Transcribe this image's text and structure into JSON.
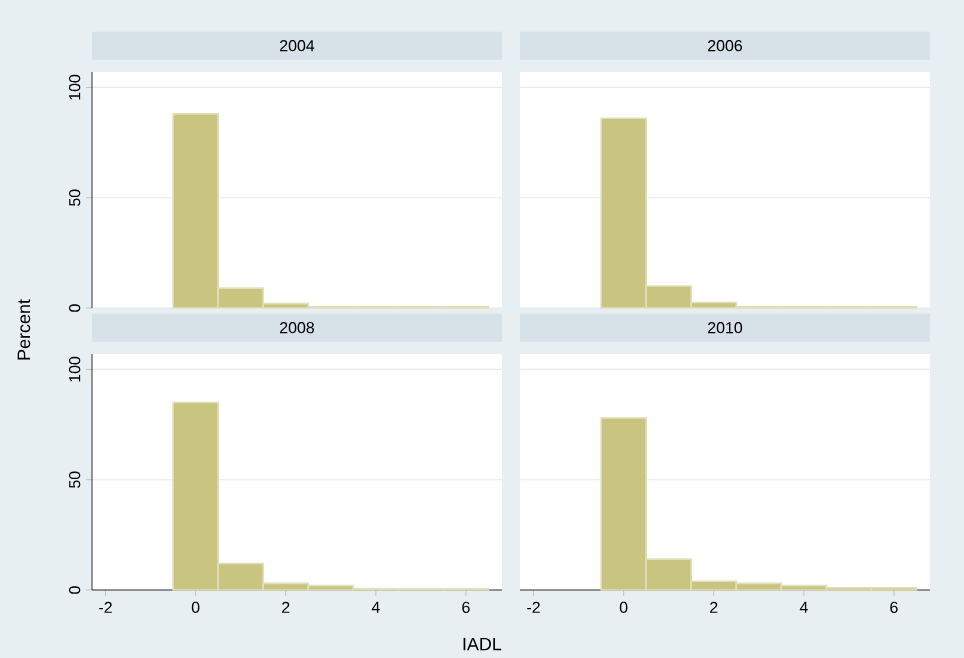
{
  "chart_data": [
    {
      "type": "histogram",
      "title": "2004",
      "ylabel": "Percent",
      "bins": [
        -0.5,
        0.5,
        1.5,
        2.5,
        3.5,
        4.5,
        5.5,
        6.5
      ],
      "values": [
        88,
        9,
        2,
        0.5,
        0.5,
        0.5,
        0.5
      ],
      "color": "#c9c47f",
      "xlim": [
        -2.3,
        6.8
      ],
      "ylim": [
        0,
        107
      ],
      "xticks": [
        -2,
        0,
        2,
        4,
        6
      ],
      "yticks": [
        0,
        50,
        100
      ],
      "grid": "y",
      "tick_labels": "y"
    },
    {
      "type": "histogram",
      "title": "2006",
      "bins": [
        -0.5,
        0.5,
        1.5,
        2.5,
        3.5,
        4.5,
        5.5,
        6.5
      ],
      "values": [
        86,
        10,
        2.5,
        0.5,
        0.5,
        0.5,
        0.5
      ],
      "color": "#c9c47f",
      "xlim": [
        -2.3,
        6.8
      ],
      "ylim": [
        0,
        107
      ],
      "xticks": [
        -2,
        0,
        2,
        4,
        6
      ],
      "yticks": [
        0,
        50,
        100
      ],
      "grid": "y",
      "tick_labels": false
    },
    {
      "type": "histogram",
      "title": "2008",
      "bins": [
        -0.5,
        0.5,
        1.5,
        2.5,
        3.5,
        4.5,
        5.5,
        6.5
      ],
      "values": [
        85,
        12,
        3,
        2,
        0.5,
        0.5,
        0.5
      ],
      "color": "#c9c47f",
      "xlim": [
        -2.3,
        6.8
      ],
      "ylim": [
        0,
        107
      ],
      "xticks": [
        -2,
        0,
        2,
        4,
        6
      ],
      "yticks": [
        0,
        50,
        100
      ],
      "grid": "y"
    },
    {
      "type": "histogram",
      "title": "2010",
      "xlabel": "IADL",
      "bins": [
        -0.5,
        0.5,
        1.5,
        2.5,
        3.5,
        4.5,
        5.5,
        6.5
      ],
      "values": [
        78,
        14,
        4,
        3,
        2,
        1,
        1
      ],
      "color": "#c9c47f",
      "xlim": [
        -2.3,
        6.8
      ],
      "ylim": [
        0,
        107
      ],
      "xticks": [
        -2,
        0,
        2,
        4,
        6
      ],
      "yticks": [
        0,
        50,
        100
      ],
      "grid": "y",
      "tick_labels": "x"
    }
  ]
}
